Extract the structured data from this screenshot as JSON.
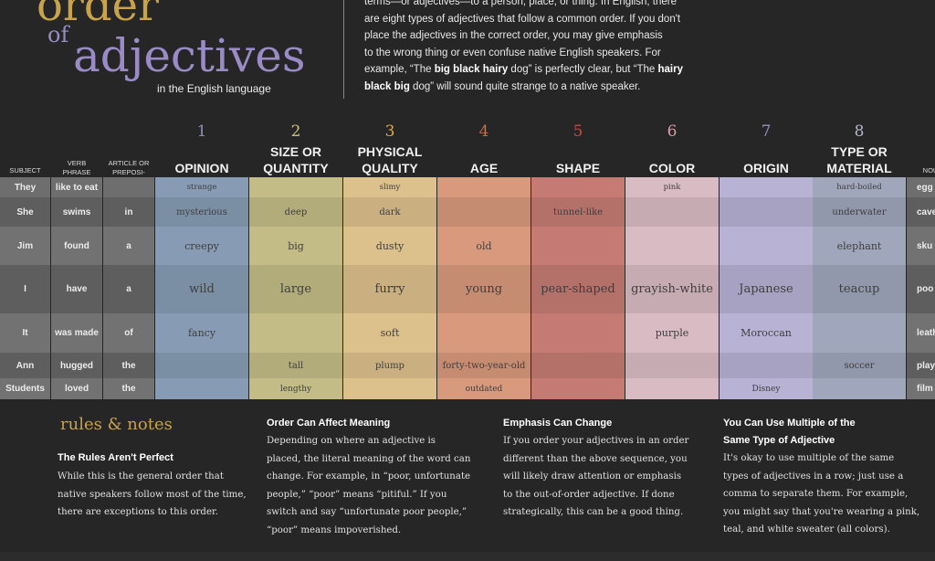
{
  "header": {
    "title_order": "order",
    "title_of": "of",
    "title_adjectives": "adjectives",
    "subtitle": "in the English language",
    "intro": {
      "line1": "terms—or adjectives—to a person, place, or thing.  In English, there",
      "line2": "are eight types of adjectives that follow a common order. If you don't",
      "line3": "place the adjectives in the correct order, you may give emphasis",
      "line4": "to the wrong thing or even confuse native English speakers. For",
      "line5_a": "example, “The ",
      "line5_b": "big black hairy",
      "line5_c": " dog” is perfectly clear, but “The ",
      "line5_d": "hairy",
      "line6_a": "black big",
      "line6_b": " dog” will sound quite strange to a native speaker."
    }
  },
  "table": {
    "left_headers": {
      "subject": "SUBJECT",
      "verb_1": "VERB",
      "verb_2": "PHRASE",
      "article_1": "ARTICLE OR",
      "article_2": "PREPOSI-",
      "noun": "NOU"
    },
    "categories": [
      {
        "number": "1",
        "line1": "",
        "line2": "OPINION",
        "number_color": "#8c93bd",
        "color": "#8fa6bf"
      },
      {
        "number": "2",
        "line1": "SIZE OR",
        "line2": "QUANTITY",
        "number_color": "#cfc07a",
        "color": "#cfc88e"
      },
      {
        "number": "3",
        "line1": "PHYSICAL",
        "line2": "QUALITY",
        "number_color": "#e0a640",
        "color": "#ebcd95"
      },
      {
        "number": "4",
        "line1": "",
        "line2": "AGE",
        "number_color": "#d66a3e",
        "color": "#e5a385"
      },
      {
        "number": "5",
        "line1": "",
        "line2": "SHAPE",
        "number_color": "#c84a3e",
        "color": "#d1837a"
      },
      {
        "number": "6",
        "line1": "",
        "line2": "COLOR",
        "number_color": "#d99aa6",
        "color": "#e6c7cf"
      },
      {
        "number": "7",
        "line1": "",
        "line2": "ORIGIN",
        "number_color": "#9a8bc6",
        "color": "#c4bde2"
      },
      {
        "number": "8",
        "line1": "TYPE OR",
        "line2": "MATERIAL",
        "number_color": "#b3b8cc",
        "color": "#aab1c7"
      }
    ],
    "rows": [
      {
        "subject": "They",
        "verb": "like to eat",
        "article": "",
        "cells": [
          "",
          "",
          "",
          "",
          "",
          "",
          "",
          "hard-boiled"
        ],
        "small_cells": [
          "strange",
          "",
          "slimy",
          "",
          "",
          "pink",
          "",
          ""
        ],
        "noun": "egg"
      },
      {
        "subject": "She",
        "verb": "swims",
        "article": "in",
        "cells": [
          "mysterious",
          "deep",
          "dark",
          "",
          "tunnel-like",
          "",
          "",
          "underwater"
        ],
        "noun": "cave"
      },
      {
        "subject": "Jim",
        "verb": "found",
        "article": "a",
        "cells": [
          "creepy",
          "big",
          "dusty",
          "old",
          "",
          "",
          "",
          "elephant"
        ],
        "noun": "sku"
      },
      {
        "subject": "I",
        "verb": "have",
        "article": "a",
        "cells": [
          "wild",
          "large",
          "furry",
          "young",
          "pear-shaped",
          "grayish-white",
          "Japanese",
          "teacup"
        ],
        "noun": "poo"
      },
      {
        "subject": "It",
        "verb": "was made",
        "article": "of",
        "cells": [
          "fancy",
          "",
          "soft",
          "",
          "",
          "purple",
          "Moroccan",
          ""
        ],
        "noun": "leath"
      },
      {
        "subject": "Ann",
        "verb": "hugged",
        "article": "the",
        "cells": [
          "",
          "tall",
          "plump",
          "forty-two-year-old",
          "",
          "",
          "",
          "soccer"
        ],
        "noun": "play"
      },
      {
        "subject": "Students",
        "verb": "loved",
        "article": "the",
        "cells": [
          "",
          "lengthy",
          "",
          "outdated",
          "",
          "",
          "Disney",
          ""
        ],
        "noun": "film"
      }
    ]
  },
  "rules": {
    "title": "rules & notes",
    "col1": {
      "heading": "The Rules Aren't Perfect",
      "l1": "While this is the general order that",
      "l2": "native speakers follow most of the time,",
      "l3": "there are exceptions to this order."
    },
    "col2": {
      "heading": "Order Can Affect Meaning",
      "l1": "Depending on where an adjective is",
      "l2": "placed, the literal meaning of the word can",
      "l3": "change. For example, in “poor, unfortunate",
      "l4": "people,” “poor” means “pitiful.” If you",
      "l5": "switch and say “unfortunate poor people,”",
      "l6": "“poor” means impoverished."
    },
    "col3": {
      "heading": "Emphasis Can Change",
      "l1": "If you order your adjectives in an order",
      "l2": "different than the above sequence, you",
      "l3": "will likely draw attention or emphasis",
      "l4": "to the out-of-order adjective. If done",
      "l5": "strategically, this can be a good thing."
    },
    "col4": {
      "heading_1": "You Can Use Multiple of the",
      "heading_2": "Same Type of Adjective",
      "l1": "It's okay to use multiple of the same",
      "l2": "types of adjectives in a row; just use a",
      "l3": "comma to separate them. For example,",
      "l4": "you might say that you're wearing a pink,",
      "l5": "teal, and white sweater (all colors)."
    }
  }
}
